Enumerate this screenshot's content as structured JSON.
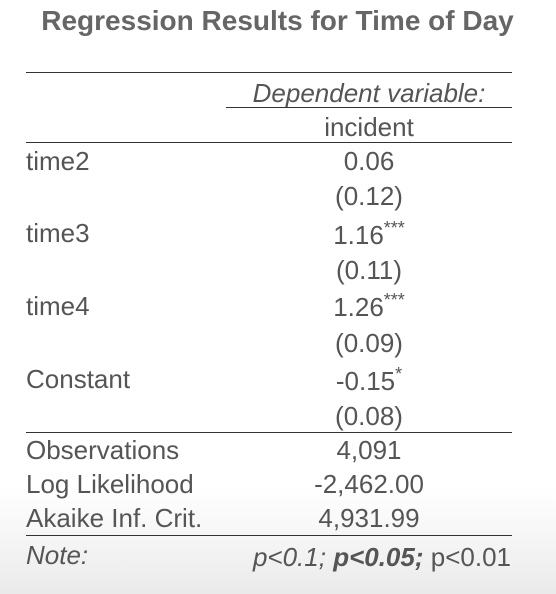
{
  "table": {
    "title": "Regression Results for Time of Day",
    "dependent_variable_caption": "Dependent variable:",
    "dependent_variable": "incident",
    "coefficients": [
      {
        "label": "time2",
        "estimate": "0.06",
        "stars": "",
        "se": "(0.12)"
      },
      {
        "label": "time3",
        "estimate": "1.16",
        "stars": "***",
        "se": "(0.11)"
      },
      {
        "label": "time4",
        "estimate": "1.26",
        "stars": "***",
        "se": "(0.09)"
      },
      {
        "label": "Constant",
        "estimate": "-0.15",
        "stars": "*",
        "se": "(0.08)"
      }
    ],
    "stats": [
      {
        "label": "Observations",
        "value": "4,091"
      },
      {
        "label": "Log Likelihood",
        "value": "-2,462.00"
      },
      {
        "label": "Akaike Inf. Crit.",
        "value": "4,931.99"
      }
    ],
    "note": {
      "label": "Note:",
      "p1": "p<0.1;",
      "p2": "p<0.05;",
      "p3": "p<0.01"
    }
  }
}
